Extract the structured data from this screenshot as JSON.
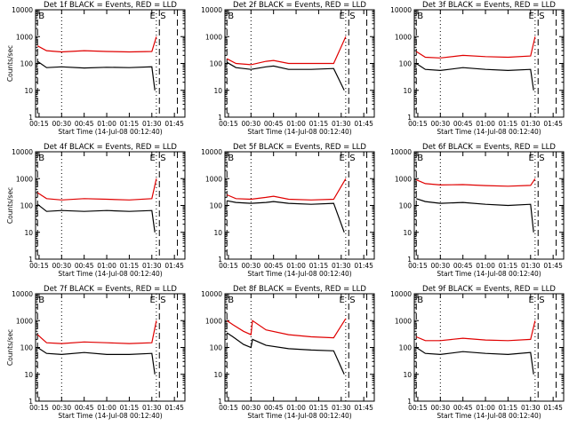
{
  "figure": {
    "x_tick_labels": [
      "00:15",
      "00:30",
      "00:45",
      "01:00",
      "01:15",
      "01:30",
      "01:45"
    ],
    "y_tick_labels": [
      "1",
      "10",
      "100",
      "1000",
      "10000"
    ],
    "colors": {
      "events": "#000000",
      "lld": "#e00000",
      "axes": "#000000",
      "background": "#ffffff"
    }
  },
  "chart_data": [
    {
      "type": "line",
      "title": "Det 1f BLACK = Events, RED = LLD",
      "xlabel": "Start Time (14-Jul-08 00:12:40)",
      "ylabel": "Counts/sec",
      "y_scale": "log",
      "ylim": [
        1,
        10000
      ],
      "xlim_minutes": [
        12.67,
        112
      ],
      "marker_labels": [
        "B",
        "E",
        "S"
      ],
      "series": [
        {
          "x_min": [
            14,
            20,
            30,
            45,
            60,
            75,
            90,
            93
          ],
          "values": [
            450,
            300,
            270,
            300,
            280,
            270,
            280,
            1000
          ]
        },
        {
          "x_min": [
            14,
            20,
            30,
            45,
            60,
            75,
            90,
            92
          ],
          "values": [
            120,
            70,
            75,
            68,
            72,
            70,
            75,
            10
          ]
        }
      ]
    },
    {
      "type": "line",
      "title": "Det 2f BLACK = Events, RED = LLD",
      "xlabel": "Start Time (14-Jul-08 00:12:40)",
      "ylabel": "",
      "y_scale": "log",
      "ylim": [
        1,
        10000
      ],
      "xlim_minutes": [
        12.67,
        112
      ],
      "marker_labels": [
        "B",
        "E",
        "S"
      ],
      "series": [
        {
          "x_min": [
            14,
            20,
            30,
            40,
            45,
            55,
            70,
            85,
            93
          ],
          "values": [
            150,
            100,
            90,
            120,
            130,
            100,
            100,
            100,
            1000
          ]
        },
        {
          "x_min": [
            14,
            20,
            30,
            40,
            45,
            55,
            70,
            85,
            92
          ],
          "values": [
            110,
            70,
            60,
            75,
            80,
            60,
            60,
            65,
            10
          ]
        }
      ]
    },
    {
      "type": "line",
      "title": "Det 3f BLACK = Events, RED = LLD",
      "xlabel": "Start Time (14-Jul-08 00:12:40)",
      "ylabel": "",
      "y_scale": "log",
      "ylim": [
        1,
        10000
      ],
      "xlim_minutes": [
        12.67,
        112
      ],
      "marker_labels": [
        "B",
        "E",
        "S"
      ],
      "series": [
        {
          "x_min": [
            14,
            20,
            30,
            45,
            60,
            75,
            90,
            93
          ],
          "values": [
            280,
            170,
            160,
            200,
            180,
            170,
            190,
            1000
          ]
        },
        {
          "x_min": [
            14,
            20,
            30,
            45,
            60,
            75,
            90,
            92
          ],
          "values": [
            100,
            60,
            55,
            70,
            60,
            55,
            60,
            10
          ]
        }
      ]
    },
    {
      "type": "line",
      "title": "Det 4f BLACK = Events, RED = LLD",
      "xlabel": "Start Time (14-Jul-08 00:12:40)",
      "ylabel": "Counts/sec",
      "y_scale": "log",
      "ylim": [
        1,
        10000
      ],
      "xlim_minutes": [
        12.67,
        112
      ],
      "marker_labels": [
        "B",
        "E",
        "S"
      ],
      "series": [
        {
          "x_min": [
            14,
            20,
            30,
            45,
            60,
            75,
            90,
            93
          ],
          "values": [
            300,
            180,
            160,
            180,
            170,
            160,
            180,
            1000
          ]
        },
        {
          "x_min": [
            14,
            20,
            30,
            45,
            60,
            75,
            90,
            92
          ],
          "values": [
            110,
            60,
            65,
            60,
            65,
            60,
            65,
            10
          ]
        }
      ]
    },
    {
      "type": "line",
      "title": "Det 5f BLACK = Events, RED = LLD",
      "xlabel": "Start Time (14-Jul-08 00:12:40)",
      "ylabel": "",
      "y_scale": "log",
      "ylim": [
        1,
        10000
      ],
      "xlim_minutes": [
        12.67,
        112
      ],
      "marker_labels": [
        "B",
        "E",
        "S"
      ],
      "series": [
        {
          "x_min": [
            14,
            20,
            30,
            40,
            45,
            55,
            70,
            85,
            93
          ],
          "values": [
            250,
            180,
            170,
            200,
            220,
            170,
            160,
            170,
            1000
          ]
        },
        {
          "x_min": [
            14,
            20,
            30,
            40,
            45,
            55,
            70,
            85,
            92
          ],
          "values": [
            150,
            130,
            120,
            130,
            140,
            120,
            110,
            120,
            10
          ]
        }
      ]
    },
    {
      "type": "line",
      "title": "Det 6f BLACK = Events, RED = LLD",
      "xlabel": "Start Time (14-Jul-08 00:12:40)",
      "ylabel": "",
      "y_scale": "log",
      "ylim": [
        1,
        10000
      ],
      "xlim_minutes": [
        12.67,
        112
      ],
      "marker_labels": [
        "B",
        "E",
        "S"
      ],
      "series": [
        {
          "x_min": [
            14,
            20,
            30,
            45,
            60,
            75,
            90,
            93
          ],
          "values": [
            900,
            650,
            580,
            600,
            550,
            520,
            560,
            1000
          ]
        },
        {
          "x_min": [
            14,
            20,
            30,
            45,
            60,
            75,
            90,
            92
          ],
          "values": [
            180,
            140,
            120,
            130,
            110,
            100,
            110,
            10
          ]
        }
      ]
    },
    {
      "type": "line",
      "title": "Det 7f BLACK = Events, RED = LLD",
      "xlabel": "Start Time (14-Jul-08 00:12:40)",
      "ylabel": "Counts/sec",
      "y_scale": "log",
      "ylim": [
        1,
        10000
      ],
      "xlim_minutes": [
        12.67,
        112
      ],
      "marker_labels": [
        "B",
        "E",
        "S"
      ],
      "series": [
        {
          "x_min": [
            14,
            20,
            30,
            45,
            60,
            75,
            90,
            93
          ],
          "values": [
            300,
            150,
            140,
            160,
            150,
            140,
            150,
            1000
          ]
        },
        {
          "x_min": [
            14,
            20,
            30,
            45,
            60,
            75,
            90,
            92
          ],
          "values": [
            100,
            60,
            55,
            65,
            55,
            55,
            60,
            10
          ]
        }
      ]
    },
    {
      "type": "line",
      "title": "Det 8f BLACK = Events, RED = LLD",
      "xlabel": "Start Time (14-Jul-08 00:12:40)",
      "ylabel": "",
      "y_scale": "log",
      "ylim": [
        1,
        10000
      ],
      "xlim_minutes": [
        12.67,
        112
      ],
      "marker_labels": [
        "B",
        "E",
        "S"
      ],
      "series": [
        {
          "x_min": [
            14,
            18,
            25,
            30,
            31,
            40,
            55,
            70,
            85,
            93
          ],
          "values": [
            1000,
            700,
            400,
            300,
            1000,
            450,
            300,
            250,
            230,
            1200
          ]
        },
        {
          "x_min": [
            14,
            18,
            25,
            30,
            31,
            40,
            55,
            70,
            85,
            92
          ],
          "values": [
            350,
            250,
            130,
            100,
            200,
            120,
            90,
            80,
            75,
            10
          ]
        }
      ]
    },
    {
      "type": "line",
      "title": "Det 9f BLACK = Events, RED = LLD",
      "xlabel": "Start Time (14-Jul-08 00:12:40)",
      "ylabel": "",
      "y_scale": "log",
      "ylim": [
        1,
        10000
      ],
      "xlim_minutes": [
        12.67,
        112
      ],
      "marker_labels": [
        "B",
        "E",
        "S"
      ],
      "series": [
        {
          "x_min": [
            14,
            20,
            30,
            45,
            60,
            75,
            90,
            93
          ],
          "values": [
            250,
            180,
            180,
            220,
            190,
            180,
            200,
            1000
          ]
        },
        {
          "x_min": [
            14,
            20,
            30,
            45,
            60,
            75,
            90,
            92
          ],
          "values": [
            100,
            60,
            55,
            70,
            60,
            55,
            65,
            10
          ]
        }
      ]
    }
  ]
}
